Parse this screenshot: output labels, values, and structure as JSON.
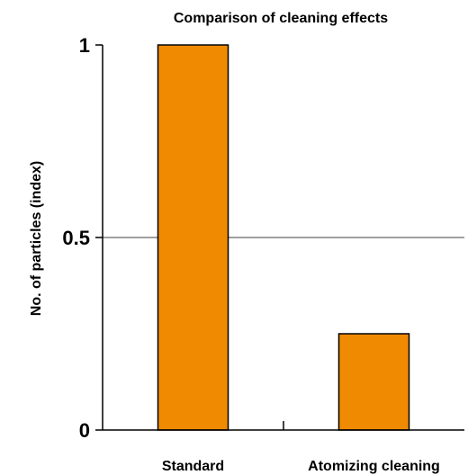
{
  "chart_data": {
    "type": "bar",
    "title": "Comparison of cleaning effects",
    "categories": [
      "Standard",
      "Atomizing cleaning"
    ],
    "values": [
      1.0,
      0.25
    ],
    "xlabel": "",
    "ylabel": "No. of particles (index)",
    "ylim": [
      0,
      1
    ],
    "yticks": [
      {
        "value": 0,
        "label": "0"
      },
      {
        "value": 0.5,
        "label": "0.5"
      },
      {
        "value": 1,
        "label": "1"
      }
    ],
    "gridlines": [
      0.5
    ],
    "legend": "none",
    "colors": {
      "bar_fill": "#f08a00",
      "bar_stroke": "#000000",
      "gridline": "#808080",
      "axis": "#000000"
    }
  }
}
